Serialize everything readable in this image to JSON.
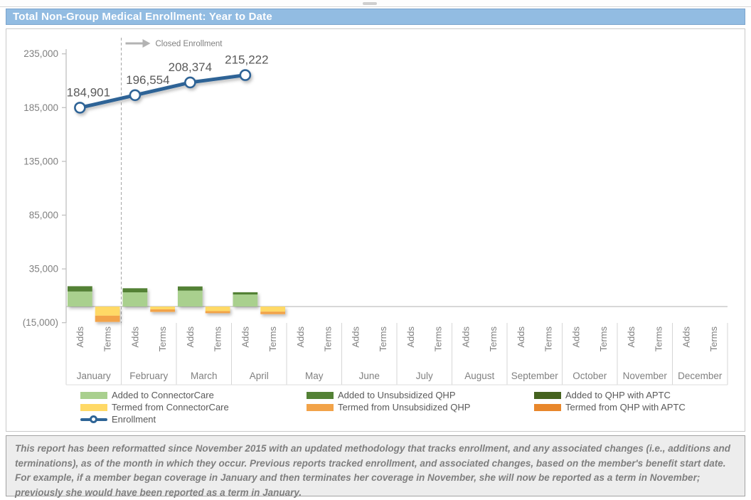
{
  "header": {
    "title": "Total Non-Group Medical Enrollment: Year to Date"
  },
  "footnote": {
    "text": "This report has been reformatted since November 2015 with an updated methodology that tracks enrollment, and any associated changes (i.e., additions and terminations), as of the month in which they occur.  Previous reports tracked enrollment, and associated changes, based on the member's benefit start date.  For example, if a member began coverage in January and then terminates her coverage in November, she will now be reported as a term in November; previously she would have been reported as a term in January."
  },
  "chart_data": {
    "type": "bar",
    "subtype": "stacked-bars-with-line",
    "title": "Total Non-Group Medical Enrollment: Year to Date",
    "months": [
      "January",
      "February",
      "March",
      "April",
      "May",
      "June",
      "July",
      "August",
      "September",
      "October",
      "November",
      "December"
    ],
    "category_sublabels": [
      "Adds",
      "Terms"
    ],
    "y_axis": {
      "ticks": [
        "235,000",
        "185,000",
        "135,000",
        "85,000",
        "35,000",
        "(15,000)"
      ],
      "tick_values": [
        235000,
        185000,
        135000,
        85000,
        35000,
        -15000
      ],
      "min": -15000,
      "max": 235000,
      "gridlines": false
    },
    "annotation": {
      "label": "Closed Enrollment",
      "divider_after_month": "January"
    },
    "line_series": {
      "name": "Enrollment",
      "color": "#2e6496",
      "months": [
        "January",
        "February",
        "March",
        "April"
      ],
      "values": [
        184901,
        196554,
        208374,
        215222
      ],
      "labels": [
        "184,901",
        "196,554",
        "208,374",
        "215,222"
      ],
      "label_x_offsets": [
        12,
        18,
        0,
        2
      ]
    },
    "bar_series": [
      {
        "name": "Added to ConnectorCare",
        "color": "#a9d08e",
        "group": "adds",
        "values": [
          14000,
          13200,
          14800,
          11200,
          0,
          0,
          0,
          0,
          0,
          0,
          0,
          0
        ]
      },
      {
        "name": "Added to Unsubsidized QHP",
        "color": "#538135",
        "group": "adds",
        "values": [
          4900,
          3800,
          3900,
          2100,
          0,
          0,
          0,
          0,
          0,
          0,
          0,
          0
        ]
      },
      {
        "name": "Added to QHP with APTC",
        "color": "#45621e",
        "group": "adds",
        "values": [
          0,
          0,
          0,
          0,
          0,
          0,
          0,
          0,
          0,
          0,
          0,
          0
        ]
      },
      {
        "name": "Termed from ConnectorCare",
        "color": "#ffd966",
        "group": "terms",
        "values": [
          -8500,
          -2600,
          -4300,
          -4800,
          0,
          0,
          0,
          0,
          0,
          0,
          0,
          0
        ]
      },
      {
        "name": "Termed from Unsubsidized QHP",
        "color": "#f2a349",
        "group": "terms",
        "values": [
          -5800,
          -2400,
          -1900,
          -2300,
          0,
          0,
          0,
          0,
          0,
          0,
          0,
          0
        ]
      },
      {
        "name": "Termed from QHP with APTC",
        "color": "#e8872b",
        "group": "terms",
        "values": [
          0,
          0,
          0,
          0,
          0,
          0,
          0,
          0,
          0,
          0,
          0,
          0
        ]
      }
    ],
    "legend": {
      "position": "bottom",
      "columns": [
        [
          {
            "label": "Added to ConnectorCare",
            "swatch": "rect",
            "color": "#a9d08e"
          },
          {
            "label": "Termed from ConnectorCare",
            "swatch": "rect",
            "color": "#ffd966"
          },
          {
            "label": "Enrollment",
            "swatch": "line",
            "color": "#2e6496"
          }
        ],
        [
          {
            "label": "Added to Unsubsidized QHP",
            "swatch": "rect",
            "color": "#538135"
          },
          {
            "label": "Termed from Unsubsidized QHP",
            "swatch": "rect",
            "color": "#f2a349"
          }
        ],
        [
          {
            "label": "Added to QHP with APTC",
            "swatch": "rect",
            "color": "#45621e"
          },
          {
            "label": "Termed from QHP with APTC",
            "swatch": "rect",
            "color": "#e8872b"
          }
        ]
      ]
    }
  }
}
